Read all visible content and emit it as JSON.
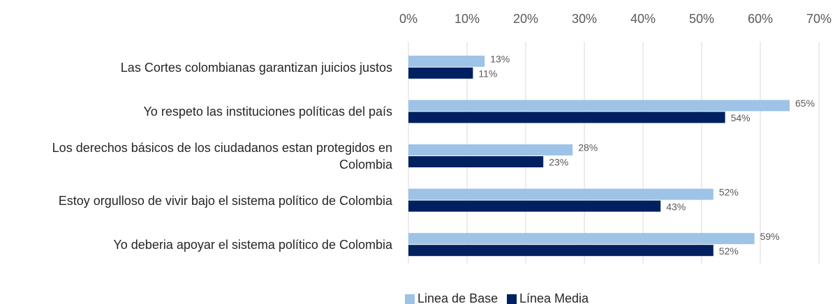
{
  "chart_data": {
    "type": "hbar",
    "categories": [
      "Las Cortes colombianas garantizan juicios justos",
      "Yo respeto las instituciones políticas del país",
      "Los derechos básicos de los ciudadanos estan protegidos en Colombia",
      "Estoy orgulloso de vivir bajo el sistema político de Colombia",
      "Yo deberia apoyar el sistema político de Colombia"
    ],
    "series": [
      {
        "name": "Linea de Base",
        "color": "#9dc3e6",
        "values": [
          13,
          65,
          28,
          52,
          59
        ],
        "value_labels": [
          "13%",
          "65%",
          "28%",
          "52%",
          "59%"
        ]
      },
      {
        "name": "Línea Media",
        "color": "#002060",
        "values": [
          11,
          54,
          23,
          43,
          52
        ],
        "value_labels": [
          "11%",
          "54%",
          "23%",
          "43%",
          "52%"
        ]
      }
    ],
    "xlim": [
      0,
      70
    ],
    "xticks": [
      {
        "value": 0,
        "label": "0%"
      },
      {
        "value": 10,
        "label": "10%"
      },
      {
        "value": 20,
        "label": "20%"
      },
      {
        "value": 30,
        "label": "30%"
      },
      {
        "value": 40,
        "label": "40%"
      },
      {
        "value": 50,
        "label": "50%"
      },
      {
        "value": 60,
        "label": "60%"
      },
      {
        "value": 70,
        "label": "70%"
      }
    ],
    "grid": true,
    "legend": "bottom"
  }
}
